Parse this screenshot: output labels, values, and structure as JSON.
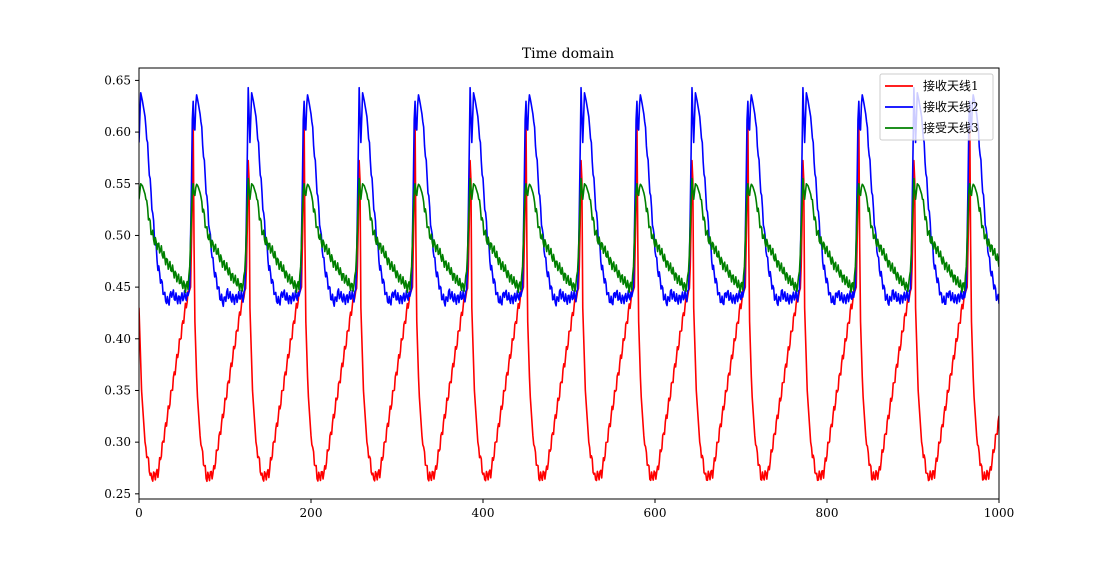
{
  "chart_data": {
    "type": "line",
    "title": "Time domain",
    "xlabel": "",
    "ylabel": "",
    "xlim": [
      0,
      1000
    ],
    "ylim": [
      0.245,
      0.662
    ],
    "xticks": [
      0,
      200,
      400,
      600,
      800,
      1000
    ],
    "xtick_labels": [
      "0",
      "200",
      "400",
      "600",
      "800",
      "1000"
    ],
    "yticks": [
      0.25,
      0.3,
      0.35,
      0.4,
      0.45,
      0.5,
      0.55,
      0.6,
      0.65
    ],
    "ytick_labels": [
      "0.25",
      "0.30",
      "0.35",
      "0.40",
      "0.45",
      "0.50",
      "0.55",
      "0.60",
      "0.65"
    ],
    "grid": false,
    "legend_position": "top-right",
    "period": 64.5,
    "series": [
      {
        "name": "接收天线1",
        "color": "#ff0000",
        "keypoints": [
          [
            0,
            0.43
          ],
          [
            3,
            0.35
          ],
          [
            7,
            0.3
          ],
          [
            11,
            0.28
          ],
          [
            14,
            0.265
          ],
          [
            18,
            0.268
          ],
          [
            22,
            0.27
          ],
          [
            26,
            0.29
          ],
          [
            30,
            0.31
          ],
          [
            34,
            0.33
          ],
          [
            38,
            0.35
          ],
          [
            42,
            0.37
          ],
          [
            46,
            0.39
          ],
          [
            50,
            0.41
          ],
          [
            54,
            0.43
          ],
          [
            58,
            0.445
          ],
          [
            60,
            0.45
          ],
          [
            62,
            0.53
          ],
          [
            63,
            0.615
          ],
          [
            64.5,
            0.43
          ]
        ]
      },
      {
        "name": "接收天线2",
        "color": "#0000ff",
        "keypoints": [
          [
            0,
            0.59
          ],
          [
            2,
            0.638
          ],
          [
            4,
            0.63
          ],
          [
            7,
            0.615
          ],
          [
            10,
            0.585
          ],
          [
            14,
            0.54
          ],
          [
            18,
            0.5
          ],
          [
            22,
            0.47
          ],
          [
            26,
            0.455
          ],
          [
            30,
            0.44
          ],
          [
            34,
            0.435
          ],
          [
            38,
            0.445
          ],
          [
            42,
            0.44
          ],
          [
            46,
            0.438
          ],
          [
            50,
            0.44
          ],
          [
            54,
            0.442
          ],
          [
            57,
            0.44
          ],
          [
            59,
            0.45
          ],
          [
            61,
            0.55
          ],
          [
            62.5,
            0.643
          ],
          [
            64.5,
            0.59
          ]
        ]
      },
      {
        "name": "接受天线3",
        "color": "#008000",
        "keypoints": [
          [
            0,
            0.535
          ],
          [
            2,
            0.55
          ],
          [
            4,
            0.548
          ],
          [
            7,
            0.54
          ],
          [
            10,
            0.525
          ],
          [
            14,
            0.505
          ],
          [
            18,
            0.495
          ],
          [
            22,
            0.49
          ],
          [
            26,
            0.485
          ],
          [
            30,
            0.478
          ],
          [
            34,
            0.472
          ],
          [
            38,
            0.468
          ],
          [
            42,
            0.462
          ],
          [
            46,
            0.458
          ],
          [
            50,
            0.454
          ],
          [
            54,
            0.45
          ],
          [
            57,
            0.452
          ],
          [
            59,
            0.47
          ],
          [
            61,
            0.52
          ],
          [
            62.5,
            0.555
          ],
          [
            64.5,
            0.535
          ]
        ]
      }
    ]
  }
}
